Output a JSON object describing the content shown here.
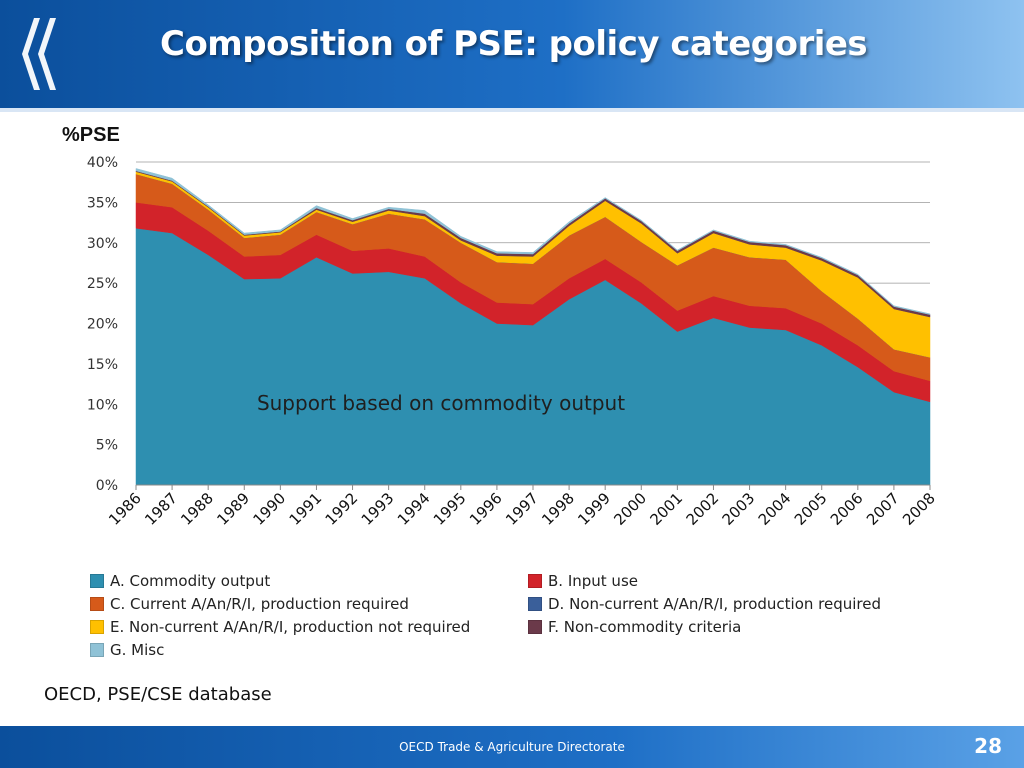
{
  "slide": {
    "title": "Composition of PSE: policy categories",
    "source": "OECD, PSE/CSE database",
    "footer": "OECD Trade & Agriculture Directorate",
    "page_number": "28"
  },
  "colors": {
    "header": "#1565c0",
    "series": [
      "#2e8fb0",
      "#d2232a",
      "#d65a1a",
      "#3a5f9a",
      "#ffc000",
      "#6b3a4a",
      "#8fc2d6"
    ]
  },
  "chart_data": {
    "type": "area",
    "stacked": true,
    "ylabel_unit": "%PSE",
    "annotation": "Support based on commodity output",
    "ylim": [
      0,
      40
    ],
    "yticks": [
      "0%",
      "5%",
      "10%",
      "15%",
      "20%",
      "25%",
      "30%",
      "35%",
      "40%"
    ],
    "grid": true,
    "legend_position": "bottom",
    "x": [
      "1986",
      "1987",
      "1988",
      "1989",
      "1990",
      "1991",
      "1992",
      "1993",
      "1994",
      "1995",
      "1996",
      "1997",
      "1998",
      "1999",
      "2000",
      "2001",
      "2002",
      "2003",
      "2004",
      "2005",
      "2006",
      "2007",
      "2008"
    ],
    "series": [
      {
        "name": "A. Commodity output",
        "color": "#2e8fb0",
        "values": [
          31.8,
          31.2,
          28.5,
          25.5,
          25.6,
          28.2,
          26.2,
          26.4,
          25.6,
          22.5,
          20.0,
          19.8,
          23.0,
          25.4,
          22.5,
          19.0,
          20.7,
          19.5,
          19.2,
          17.3,
          14.6,
          11.5,
          10.3
        ]
      },
      {
        "name": "B. Input use",
        "color": "#d2232a",
        "values": [
          3.2,
          3.2,
          3.0,
          2.8,
          2.9,
          2.8,
          2.8,
          2.9,
          2.7,
          2.6,
          2.6,
          2.6,
          2.6,
          2.6,
          2.6,
          2.6,
          2.7,
          2.7,
          2.7,
          2.7,
          2.7,
          2.6,
          2.6
        ]
      },
      {
        "name": "C. Current A/An/R/I, production required",
        "color": "#d65a1a",
        "values": [
          3.5,
          2.9,
          2.6,
          2.3,
          2.5,
          2.8,
          3.3,
          4.3,
          4.6,
          4.9,
          5.0,
          5.0,
          5.3,
          5.2,
          5.0,
          5.6,
          6.0,
          6.0,
          6.0,
          4.0,
          3.3,
          2.7,
          2.9
        ]
      },
      {
        "name": "D. Non-current A/An/R/I, production required",
        "color": "#3a5f9a",
        "values": [
          0.0,
          0.0,
          0.0,
          0.0,
          0.0,
          0.0,
          0.0,
          0.0,
          0.0,
          0.0,
          0.0,
          0.0,
          0.0,
          0.0,
          0.0,
          0.0,
          0.0,
          0.0,
          0.0,
          0.0,
          0.0,
          0.0,
          0.0
        ]
      },
      {
        "name": "E. Non-current A/An/R/I, production not required",
        "color": "#ffc000",
        "values": [
          0.3,
          0.3,
          0.3,
          0.3,
          0.3,
          0.3,
          0.3,
          0.4,
          0.4,
          0.3,
          0.8,
          0.9,
          1.2,
          2.0,
          2.3,
          1.5,
          1.8,
          1.6,
          1.5,
          3.8,
          5.1,
          5.0,
          5.0
        ]
      },
      {
        "name": "F. Non-commodity criteria",
        "color": "#6b3a4a",
        "values": [
          0.1,
          0.1,
          0.1,
          0.1,
          0.1,
          0.2,
          0.2,
          0.2,
          0.3,
          0.3,
          0.3,
          0.3,
          0.3,
          0.3,
          0.3,
          0.3,
          0.3,
          0.3,
          0.3,
          0.3,
          0.3,
          0.3,
          0.3
        ]
      },
      {
        "name": "G. Misc",
        "color": "#8fc2d6",
        "values": [
          0.3,
          0.3,
          0.2,
          0.2,
          0.2,
          0.3,
          0.2,
          0.2,
          0.4,
          0.2,
          0.2,
          0.2,
          0.2,
          0.1,
          0.1,
          0.1,
          0.1,
          0.1,
          0.1,
          0.1,
          0.1,
          0.1,
          0.1
        ]
      }
    ]
  }
}
